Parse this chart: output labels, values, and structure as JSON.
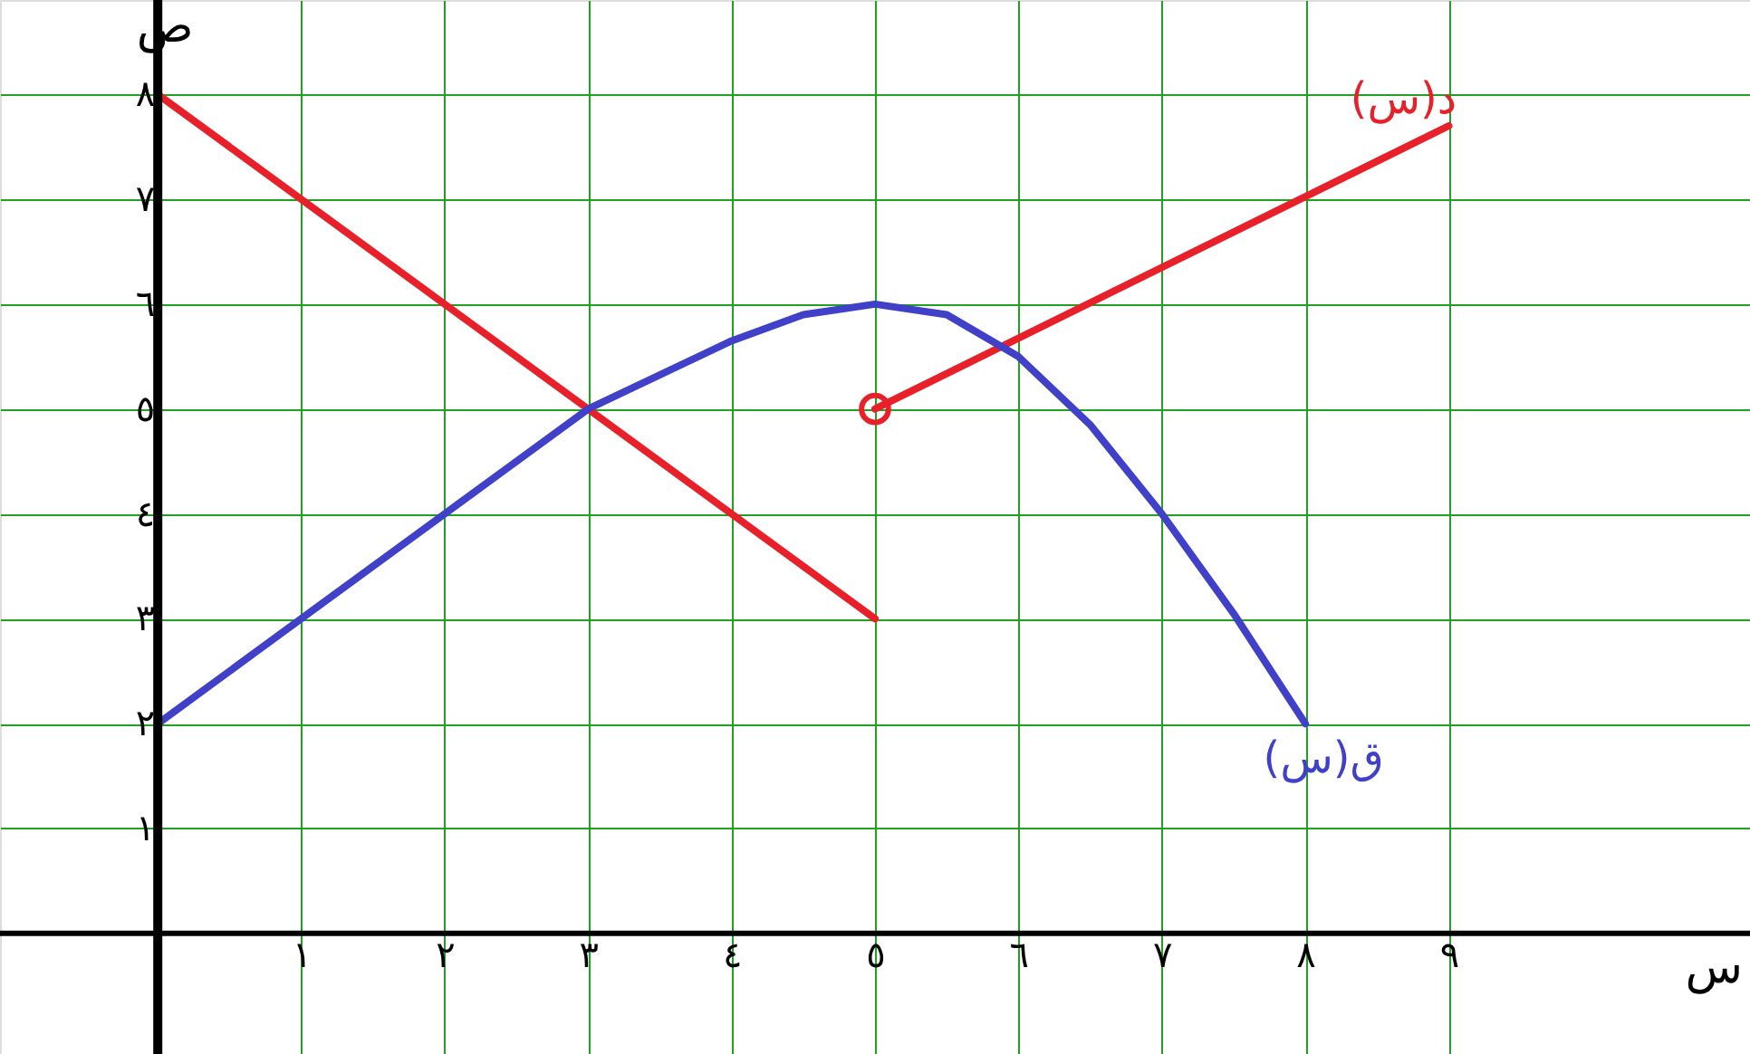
{
  "chart_data": {
    "type": "line",
    "xlabel": "س",
    "ylabel": "ص",
    "xlim": [
      -1.1,
      11.1
    ],
    "ylim": [
      -1.15,
      8.9
    ],
    "xticks": [
      {
        "value": 1,
        "label": "١"
      },
      {
        "value": 2,
        "label": "٢"
      },
      {
        "value": 3,
        "label": "٣"
      },
      {
        "value": 4,
        "label": "٤"
      },
      {
        "value": 5,
        "label": "٥"
      },
      {
        "value": 6,
        "label": "٦"
      },
      {
        "value": 7,
        "label": "٧"
      },
      {
        "value": 8,
        "label": "٨"
      },
      {
        "value": 9,
        "label": "٩"
      }
    ],
    "yticks": [
      {
        "value": 1,
        "label": "١"
      },
      {
        "value": 2,
        "label": "٢"
      },
      {
        "value": 3,
        "label": "٣"
      },
      {
        "value": 4,
        "label": "٤"
      },
      {
        "value": 5,
        "label": "٥"
      },
      {
        "value": 6,
        "label": "٦"
      },
      {
        "value": 7,
        "label": "٧"
      },
      {
        "value": 8,
        "label": "٨"
      }
    ],
    "grid": true,
    "marker": "none",
    "line_style": "solid",
    "series": [
      {
        "color": "#e8202a",
        "x": [
          0,
          5
        ],
        "values": [
          8,
          3
        ]
      },
      {
        "name": "د(س)",
        "color": "#e8202a",
        "x": [
          5,
          9
        ],
        "values": [
          5,
          7.7
        ]
      },
      {
        "name": "ق(س)",
        "color": "#4040c8",
        "x": [
          0,
          1,
          2,
          3,
          4,
          4.5,
          5,
          5.5,
          6,
          6.5,
          7,
          7.5,
          8
        ],
        "values": [
          2,
          3,
          4,
          5,
          5.65,
          5.9,
          6,
          5.9,
          5.5,
          4.85,
          4,
          3.05,
          2
        ]
      },
      {
        "type": "scatter",
        "marker": "circle",
        "color": "#e8202a",
        "x": [
          5
        ],
        "values": [
          5
        ]
      }
    ]
  }
}
